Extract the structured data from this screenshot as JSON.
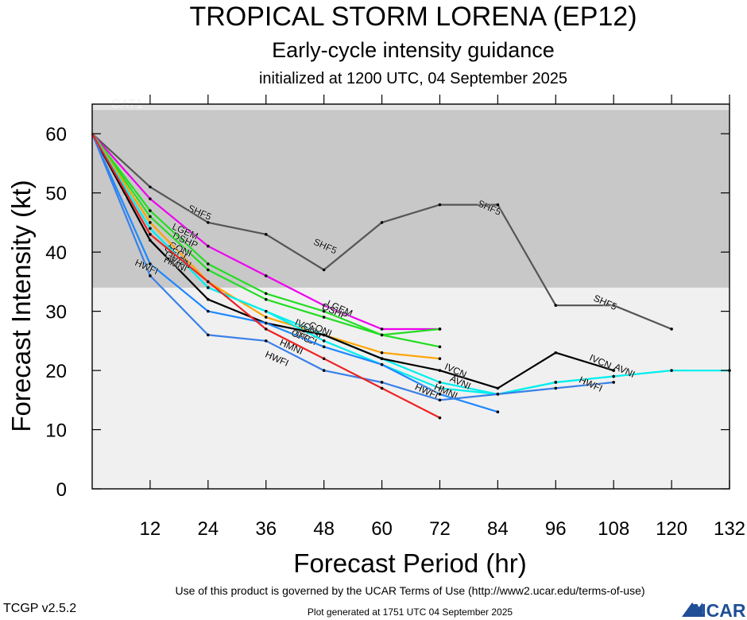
{
  "header": {
    "title": "TROPICAL STORM LORENA (EP12)",
    "subtitle": "Early-cycle intensity guidance",
    "init": "initialized at 1200 UTC, 04 September 2025"
  },
  "footer": {
    "terms": "Use of this product is governed by the UCAR Terms of Use (http://www2.ucar.edu/terms-of-use)",
    "version": "TCGP v2.5.2",
    "generated": "Plot generated at 1751 UTC   04 September 2025",
    "logo": "NCAR"
  },
  "colors": {
    "background": "#ffffff",
    "ts_band": "#c8c8c8",
    "cat1_band": "#e4e4e4",
    "band_label": "#f2f2f2"
  },
  "chart_data": {
    "type": "line",
    "xlabel": "Forecast Period (hr)",
    "ylabel": "Forecast Intensity (kt)",
    "xlim": [
      0,
      132
    ],
    "ylim": [
      0,
      65
    ],
    "xticks": [
      12,
      24,
      36,
      48,
      60,
      72,
      84,
      96,
      108,
      120,
      132
    ],
    "yticks": [
      0,
      10,
      20,
      30,
      40,
      50,
      60
    ],
    "bands": [
      {
        "label": "CAT1",
        "from": 64,
        "to": 65,
        "color": "#e4e4e4"
      },
      {
        "label": "TS",
        "from": 34,
        "to": 64,
        "color": "#c8c8c8"
      }
    ],
    "series": [
      {
        "name": "SHF5",
        "color": "#555555",
        "x": [
          0,
          12,
          24,
          36,
          48,
          60,
          72,
          84,
          96,
          108,
          120
        ],
        "y": [
          60,
          51,
          45,
          43,
          37,
          45,
          48,
          48,
          31,
          31,
          27
        ],
        "labels": [
          [
            22,
            46.2
          ],
          [
            48,
            40.5
          ],
          [
            82,
            47
          ],
          [
            106,
            31
          ]
        ]
      },
      {
        "name": "LGEM",
        "color": "#ee00ee",
        "x": [
          0,
          12,
          24,
          36,
          48,
          60,
          72
        ],
        "y": [
          60,
          49,
          41,
          36,
          31,
          27,
          27
        ],
        "labels": [
          [
            19,
            43
          ],
          [
            51,
            30
          ]
        ]
      },
      {
        "name": "DSHP",
        "color": "#22dd22",
        "x": [
          0,
          12,
          24,
          36,
          48,
          60,
          72
        ],
        "y": [
          60,
          47,
          38,
          33,
          30,
          26,
          27
        ],
        "labels": [
          [
            19,
            41.5
          ],
          [
            50,
            29.5
          ]
        ]
      },
      {
        "name": "CONI",
        "color": "#22dd22",
        "x": [
          0,
          12,
          24,
          36,
          48,
          60,
          72
        ],
        "y": [
          60,
          46,
          37,
          32,
          29,
          26,
          24
        ],
        "labels": [
          [
            18,
            40
          ],
          [
            47,
            26.5
          ]
        ]
      },
      {
        "name": "OFCI",
        "color": "#ffa500",
        "x": [
          0,
          12,
          24,
          36,
          48,
          60,
          72
        ],
        "y": [
          60,
          45,
          35,
          29,
          26,
          23,
          22
        ],
        "labels": [
          [
            17,
            39.5
          ],
          [
            44,
            25
          ]
        ]
      },
      {
        "name": "GFSI",
        "color": "#00eeee",
        "x": [
          0,
          12,
          24,
          36,
          48,
          60,
          72,
          84,
          96,
          108,
          120,
          132
        ],
        "y": [
          60,
          44,
          34,
          30,
          26,
          22,
          18,
          16,
          18,
          19,
          20,
          20
        ],
        "labels": [
          [
            17,
            38.5
          ],
          [
            45,
            26
          ]
        ]
      },
      {
        "name": "AVNI",
        "color": "#00eeee",
        "x": [
          0,
          12,
          24,
          36,
          48,
          60,
          72,
          84,
          96,
          108
        ],
        "y": [
          60,
          44,
          34,
          30,
          25,
          21,
          17,
          16,
          18,
          19
        ],
        "labels": [
          [
            76,
            17.5
          ],
          [
            110,
            19.5
          ]
        ]
      },
      {
        "name": "IVCN",
        "color": "#000000",
        "x": [
          0,
          12,
          24,
          36,
          48,
          60,
          72,
          84,
          96,
          108
        ],
        "y": [
          60,
          42,
          32,
          28,
          26,
          22,
          20,
          17,
          23,
          20
        ],
        "labels": [
          [
            18,
            38
          ],
          [
            44,
            27
          ],
          [
            75,
            19.5
          ],
          [
            105,
            21
          ]
        ]
      },
      {
        "name": "HMNI",
        "color": "#1e88ff",
        "x": [
          0,
          12,
          24,
          36,
          48,
          60,
          72,
          84
        ],
        "y": [
          60,
          38,
          30,
          28,
          24,
          21,
          16,
          13
        ],
        "labels": [
          [
            17,
            37.5
          ],
          [
            41,
            23.5
          ],
          [
            73,
            16
          ]
        ]
      },
      {
        "name": "HWFI",
        "color": "#3a80e8",
        "x": [
          0,
          12,
          24,
          36,
          48,
          60,
          72,
          84,
          96,
          108
        ],
        "y": [
          60,
          36,
          26,
          25,
          20,
          18,
          15,
          16,
          17,
          18
        ],
        "labels": [
          [
            11,
            37
          ],
          [
            38,
            21.5
          ],
          [
            69,
            16
          ],
          [
            103,
            17.2
          ]
        ]
      },
      {
        "name": "OFC",
        "color": "#ee2222",
        "x": [
          0,
          12,
          24,
          36,
          48,
          60,
          72
        ],
        "y": [
          60,
          43,
          35,
          27,
          22,
          17,
          12
        ],
        "labels": [
          [
            43,
            25.3
          ]
        ]
      }
    ]
  }
}
